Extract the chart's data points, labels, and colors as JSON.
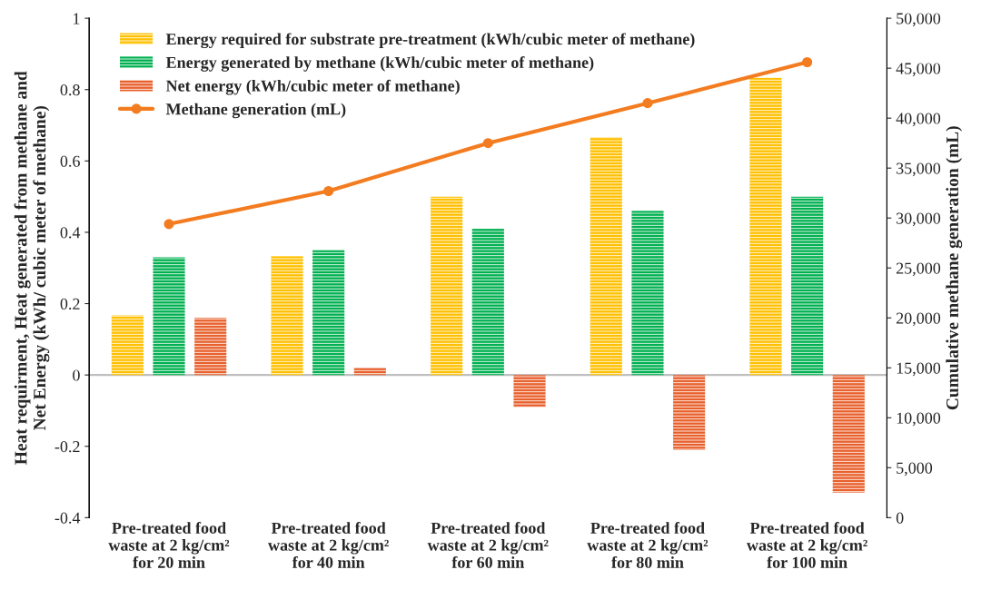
{
  "chart_data": {
    "type": "bar",
    "categories": [
      "Pre-treated food\nwaste at 2 kg/cm²\nfor 20 min",
      "Pre-treated food\nwaste at 2 kg/cm²\nfor 40 min",
      "Pre-treated food\nwaste at 2 kg/cm²\nfor 60 min",
      "Pre-treated food\nwaste at 2 kg/cm²\nfor 80 min",
      "Pre-treated food\nwaste at 2 kg/cm²\nfor 100 min"
    ],
    "ylabel": "Heat requirment, Heat generated from methane and\nNet Energy (kWh/ cubic meter of methane)",
    "y2label": "Cumulative methane generation (mL)",
    "series": [
      {
        "name": "Energy required for substrate pre-treatment (kWh/cubic meter of methane)",
        "color": "#ffc000",
        "values": [
          0.167,
          0.333,
          0.5,
          0.667,
          0.833
        ]
      },
      {
        "name": "Energy generated by methane (kWh/cubic meter of methane)",
        "color": "#00b050",
        "values": [
          0.33,
          0.35,
          0.41,
          0.46,
          0.5
        ]
      },
      {
        "name": "Net energy (kWh/cubic meter of methane)",
        "color": "#e8602c",
        "values": [
          0.16,
          0.02,
          -0.09,
          -0.21,
          -0.33
        ]
      },
      {
        "name": "Methane generation (mL)",
        "type": "line",
        "axis": "y2",
        "color": "#f47c20",
        "marker": "circle",
        "values": [
          29400,
          32700,
          37500,
          41500,
          45600
        ]
      }
    ],
    "ylim": [
      -0.4,
      1
    ],
    "yticks": [
      {
        "value": -0.4,
        "label": "-0.4"
      },
      {
        "value": -0.2,
        "label": "-0.2"
      },
      0,
      0.2,
      0.4,
      0.6,
      0.8,
      1
    ],
    "y2lim": [
      0,
      50000
    ],
    "y2ticks": [
      0,
      {
        "value": 5000,
        "label": "5,000"
      },
      {
        "value": 10000,
        "label": "10,000"
      },
      {
        "value": 15000,
        "label": "15,000"
      },
      {
        "value": 20000,
        "label": "20,000"
      },
      {
        "value": 25000,
        "label": "25,000"
      },
      {
        "value": 30000,
        "label": "30,000"
      },
      {
        "value": 35000,
        "label": "35,000"
      },
      {
        "value": 40000,
        "label": "40,000"
      },
      {
        "value": 45000,
        "label": "45,000"
      },
      {
        "value": 50000,
        "label": "50,000"
      }
    ],
    "ref_lines": [
      {
        "axis": "y",
        "value": 0,
        "color": "#bfbfbf"
      }
    ],
    "legend": "top left"
  }
}
